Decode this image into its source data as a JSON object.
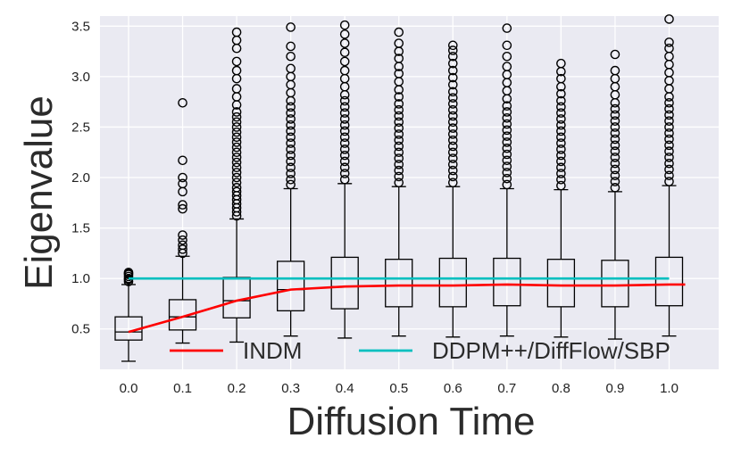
{
  "chart_data": {
    "type": "box",
    "xlabel": "Diffusion Time",
    "ylabel": "Eigenvalue",
    "categories": [
      "0.0",
      "0.1",
      "0.2",
      "0.3",
      "0.4",
      "0.5",
      "0.6",
      "0.7",
      "0.8",
      "0.9",
      "1.0"
    ],
    "ylim": [
      0.1,
      3.6
    ],
    "yticks": [
      "0.5",
      "1.0",
      "1.5",
      "2.0",
      "2.5",
      "3.0",
      "3.5"
    ],
    "grid": true,
    "legend_position": "lower center",
    "boxes": [
      {
        "x": "0.0",
        "whisker_low": 0.18,
        "q1": 0.39,
        "median": 0.47,
        "q3": 0.62,
        "whisker_high": 0.94,
        "outliers": [
          0.97,
          0.99,
          1.0,
          1.02,
          1.04,
          1.05,
          1.06
        ]
      },
      {
        "x": "0.1",
        "whisker_low": 0.36,
        "q1": 0.49,
        "median": 0.62,
        "q3": 0.79,
        "whisker_high": 1.22,
        "outliers": [
          1.25,
          1.29,
          1.33,
          1.38,
          1.43,
          1.69,
          1.73,
          1.86,
          1.94,
          2.0,
          2.17,
          2.74
        ]
      },
      {
        "x": "0.2",
        "whisker_low": 0.37,
        "q1": 0.61,
        "median": 0.78,
        "q3": 1.01,
        "whisker_high": 1.59,
        "outliers": [
          1.62,
          1.66,
          1.7,
          1.74,
          1.78,
          1.82,
          1.86,
          1.9,
          1.95,
          2.0,
          2.05,
          2.1,
          2.15,
          2.2,
          2.25,
          2.3,
          2.35,
          2.4,
          2.45,
          2.5,
          2.55,
          2.6,
          2.65,
          2.72,
          2.8,
          2.88,
          2.98,
          3.06,
          3.15,
          3.28,
          3.36,
          3.44
        ]
      },
      {
        "x": "0.3",
        "whisker_low": 0.43,
        "q1": 0.68,
        "median": 0.89,
        "q3": 1.17,
        "whisker_high": 1.89,
        "outliers": [
          1.93,
          1.98,
          2.04,
          2.1,
          2.16,
          2.22,
          2.28,
          2.34,
          2.4,
          2.46,
          2.52,
          2.58,
          2.64,
          2.7,
          2.76,
          2.84,
          2.92,
          3.0,
          3.08,
          3.2,
          3.3,
          3.49
        ]
      },
      {
        "x": "0.4",
        "whisker_low": 0.41,
        "q1": 0.7,
        "median": 0.92,
        "q3": 1.21,
        "whisker_high": 1.94,
        "outliers": [
          1.98,
          2.04,
          2.1,
          2.16,
          2.22,
          2.28,
          2.34,
          2.4,
          2.46,
          2.52,
          2.58,
          2.64,
          2.7,
          2.76,
          2.82,
          2.9,
          2.98,
          3.06,
          3.15,
          3.24,
          3.33,
          3.42,
          3.51
        ]
      },
      {
        "x": "0.5",
        "whisker_low": 0.43,
        "q1": 0.72,
        "median": 0.93,
        "q3": 1.19,
        "whisker_high": 1.91,
        "outliers": [
          1.95,
          2.01,
          2.07,
          2.13,
          2.19,
          2.25,
          2.31,
          2.37,
          2.43,
          2.49,
          2.55,
          2.61,
          2.67,
          2.73,
          2.8,
          2.87,
          2.95,
          3.03,
          3.1,
          3.18,
          3.25,
          3.33,
          3.44
        ]
      },
      {
        "x": "0.6",
        "whisker_low": 0.42,
        "q1": 0.72,
        "median": 0.93,
        "q3": 1.2,
        "whisker_high": 1.91,
        "outliers": [
          1.95,
          2.01,
          2.07,
          2.13,
          2.19,
          2.25,
          2.31,
          2.37,
          2.43,
          2.49,
          2.55,
          2.61,
          2.67,
          2.73,
          2.79,
          2.85,
          2.92,
          2.99,
          3.06,
          3.13,
          3.2,
          3.26,
          3.31
        ]
      },
      {
        "x": "0.7",
        "whisker_low": 0.43,
        "q1": 0.73,
        "median": 0.94,
        "q3": 1.2,
        "whisker_high": 1.89,
        "outliers": [
          1.93,
          1.99,
          2.05,
          2.11,
          2.17,
          2.23,
          2.29,
          2.35,
          2.41,
          2.47,
          2.53,
          2.59,
          2.65,
          2.71,
          2.78,
          2.86,
          2.94,
          3.02,
          3.1,
          3.2,
          3.31,
          3.48
        ]
      },
      {
        "x": "0.8",
        "whisker_low": 0.42,
        "q1": 0.72,
        "median": 0.93,
        "q3": 1.19,
        "whisker_high": 1.88,
        "outliers": [
          1.92,
          1.98,
          2.04,
          2.1,
          2.16,
          2.22,
          2.28,
          2.34,
          2.4,
          2.46,
          2.52,
          2.58,
          2.64,
          2.7,
          2.76,
          2.83,
          2.9,
          2.98,
          3.05,
          3.13
        ]
      },
      {
        "x": "0.9",
        "whisker_low": 0.4,
        "q1": 0.72,
        "median": 0.93,
        "q3": 1.18,
        "whisker_high": 1.86,
        "outliers": [
          1.9,
          1.96,
          2.02,
          2.08,
          2.14,
          2.2,
          2.26,
          2.32,
          2.38,
          2.44,
          2.5,
          2.56,
          2.62,
          2.68,
          2.74,
          2.82,
          2.9,
          2.98,
          3.06,
          3.22
        ]
      },
      {
        "x": "1.0",
        "whisker_low": 0.43,
        "q1": 0.73,
        "median": 0.94,
        "q3": 1.21,
        "whisker_high": 1.92,
        "outliers": [
          1.96,
          2.02,
          2.08,
          2.14,
          2.2,
          2.26,
          2.32,
          2.38,
          2.44,
          2.5,
          2.56,
          2.62,
          2.68,
          2.74,
          2.8,
          2.88,
          2.96,
          3.04,
          3.12,
          3.2,
          3.28,
          3.34,
          3.57
        ]
      }
    ],
    "series": [
      {
        "name": "INDM",
        "color": "#ff0000",
        "x": [
          0.0,
          0.1,
          0.2,
          0.3,
          0.4,
          0.5,
          0.6,
          0.7,
          0.8,
          0.9,
          1.0
        ],
        "values": [
          0.47,
          0.62,
          0.78,
          0.89,
          0.92,
          0.93,
          0.93,
          0.94,
          0.93,
          0.93,
          0.94
        ]
      },
      {
        "name": "DDPM++/DiffFlow/SBP",
        "color": "#00bfbf",
        "x": [
          0.0,
          0.1,
          0.2,
          0.3,
          0.4,
          0.5,
          0.6,
          0.7,
          0.8,
          0.9,
          1.0
        ],
        "values": [
          1.0,
          1.0,
          1.0,
          1.0,
          1.0,
          1.0,
          1.0,
          1.0,
          1.0,
          1.0,
          1.0
        ]
      }
    ],
    "colors": {
      "plot_background": "#eaeaf2",
      "grid": "#ffffff",
      "box_edge": "#000000"
    }
  }
}
